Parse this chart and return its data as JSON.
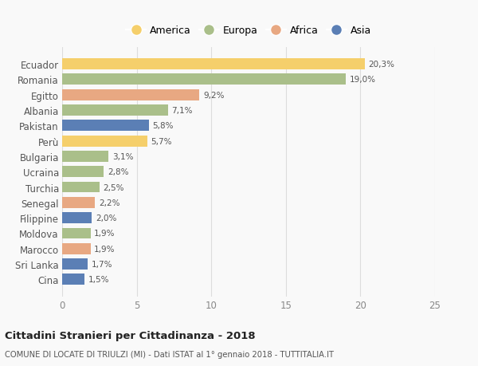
{
  "countries": [
    "Ecuador",
    "Romania",
    "Egitto",
    "Albania",
    "Pakistan",
    "Perù",
    "Bulgaria",
    "Ucraina",
    "Turchia",
    "Senegal",
    "Filippine",
    "Moldova",
    "Marocco",
    "Sri Lanka",
    "Cina"
  ],
  "values": [
    20.3,
    19.0,
    9.2,
    7.1,
    5.8,
    5.7,
    3.1,
    2.8,
    2.5,
    2.2,
    2.0,
    1.9,
    1.9,
    1.7,
    1.5
  ],
  "labels": [
    "20,3%",
    "19,0%",
    "9,2%",
    "7,1%",
    "5,8%",
    "5,7%",
    "3,1%",
    "2,8%",
    "2,5%",
    "2,2%",
    "2,0%",
    "1,9%",
    "1,9%",
    "1,7%",
    "1,5%"
  ],
  "continents": [
    "America",
    "Europa",
    "Africa",
    "Europa",
    "Asia",
    "America",
    "Europa",
    "Europa",
    "Europa",
    "Africa",
    "Asia",
    "Europa",
    "Africa",
    "Asia",
    "Asia"
  ],
  "colors": {
    "America": "#F5CF6B",
    "Europa": "#AABF8A",
    "Africa": "#E8A882",
    "Asia": "#5B7FB5"
  },
  "legend_order": [
    "America",
    "Europa",
    "Africa",
    "Asia"
  ],
  "xlim": [
    0,
    25
  ],
  "xticks": [
    0,
    5,
    10,
    15,
    20,
    25
  ],
  "title": "Cittadini Stranieri per Cittadinanza - 2018",
  "subtitle": "COMUNE DI LOCATE DI TRIULZI (MI) - Dati ISTAT al 1° gennaio 2018 - TUTTITALIA.IT",
  "background_color": "#f9f9f9",
  "grid_color": "#dddddd"
}
